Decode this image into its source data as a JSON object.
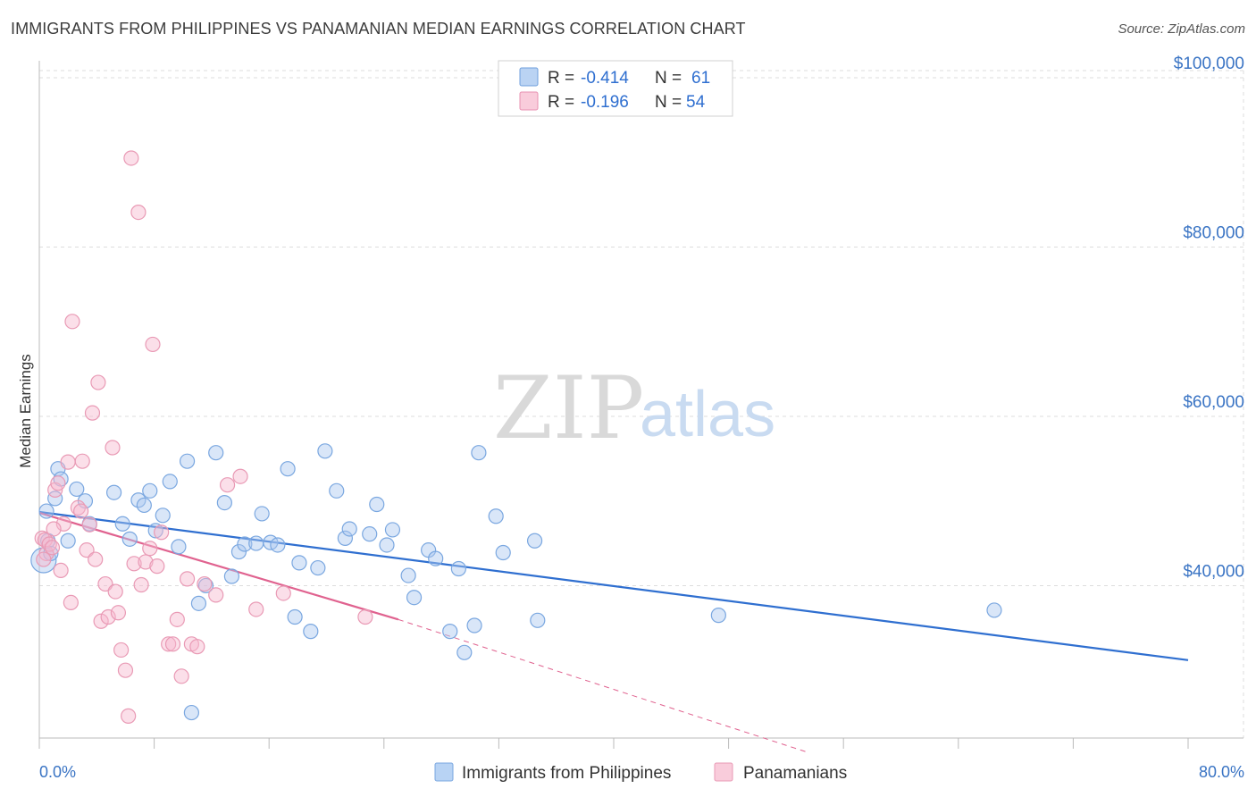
{
  "title": "IMMIGRANTS FROM PHILIPPINES VS PANAMANIAN MEDIAN EARNINGS CORRELATION CHART",
  "source": "Source: ZipAtlas.com",
  "watermark": {
    "zip": "ZIP",
    "atlas": "atlas"
  },
  "legend_top": {
    "rows": [
      {
        "r_label": "R =",
        "r_value": "-0.414",
        "n_label": "N =",
        "n_value": "61",
        "color": "#a9c8f0",
        "stroke": "#6f9fdc"
      },
      {
        "r_label": "R =",
        "r_value": "-0.196",
        "n_label": "N =",
        "n_value": "54",
        "color": "#f7bfd2",
        "stroke": "#e890b0"
      }
    ]
  },
  "legend_bottom": [
    {
      "label": "Immigrants from Philippines",
      "color": "#b8d3f4",
      "stroke": "#7aa7e0"
    },
    {
      "label": "Panamanians",
      "color": "#f9ccdb",
      "stroke": "#e99ab5"
    }
  ],
  "colors": {
    "blue": "#2f6fd0",
    "pink": "#e0628f",
    "blue_fill": "rgba(170,200,240,0.45)",
    "pink_fill": "rgba(247,185,206,0.45)",
    "grid": "#dddddd"
  },
  "chart_data": {
    "type": "scatter",
    "xlabel": "",
    "ylabel": "Median Earnings",
    "xlim": [
      0,
      80
    ],
    "ylim": [
      22000,
      102000
    ],
    "x_tick_labels": [
      "0.0%",
      "80.0%"
    ],
    "y_ticks": [
      40000,
      60000,
      80000,
      100000
    ],
    "y_tick_labels": [
      "$40,000",
      "$60,000",
      "$80,000",
      "$100,000"
    ],
    "grid": true,
    "series": [
      {
        "name": "Immigrants from Philippines",
        "color": "#2f6fd0",
        "points": [
          [
            0.3,
            43000
          ],
          [
            0.5,
            48800
          ],
          [
            0.6,
            45300
          ],
          [
            0.8,
            43800
          ],
          [
            1.1,
            50300
          ],
          [
            1.3,
            53800
          ],
          [
            1.5,
            52600
          ],
          [
            2.0,
            45300
          ],
          [
            2.6,
            51400
          ],
          [
            3.2,
            50000
          ],
          [
            3.5,
            47300
          ],
          [
            5.2,
            51000
          ],
          [
            5.8,
            47300
          ],
          [
            6.3,
            45500
          ],
          [
            6.9,
            50100
          ],
          [
            7.3,
            49500
          ],
          [
            7.7,
            51200
          ],
          [
            8.1,
            46500
          ],
          [
            8.6,
            48300
          ],
          [
            9.1,
            52300
          ],
          [
            9.7,
            44600
          ],
          [
            10.3,
            54700
          ],
          [
            11.1,
            37900
          ],
          [
            11.6,
            40000
          ],
          [
            12.3,
            55700
          ],
          [
            12.9,
            49800
          ],
          [
            13.4,
            41100
          ],
          [
            13.9,
            44000
          ],
          [
            14.3,
            44900
          ],
          [
            15.1,
            45000
          ],
          [
            15.5,
            48500
          ],
          [
            16.1,
            45100
          ],
          [
            16.6,
            44800
          ],
          [
            17.3,
            53800
          ],
          [
            17.8,
            36300
          ],
          [
            18.1,
            42700
          ],
          [
            18.9,
            34600
          ],
          [
            19.4,
            42100
          ],
          [
            19.9,
            55900
          ],
          [
            20.7,
            51200
          ],
          [
            21.3,
            45600
          ],
          [
            21.6,
            46700
          ],
          [
            23.0,
            46100
          ],
          [
            23.5,
            49600
          ],
          [
            24.2,
            44800
          ],
          [
            24.6,
            46600
          ],
          [
            25.7,
            41200
          ],
          [
            26.1,
            38600
          ],
          [
            27.1,
            44200
          ],
          [
            27.6,
            43200
          ],
          [
            28.6,
            34600
          ],
          [
            29.2,
            42000
          ],
          [
            29.6,
            32100
          ],
          [
            30.3,
            35300
          ],
          [
            30.6,
            55700
          ],
          [
            31.8,
            48200
          ],
          [
            32.3,
            43900
          ],
          [
            34.5,
            45300
          ],
          [
            34.7,
            35900
          ],
          [
            47.3,
            36500
          ],
          [
            66.5,
            37100
          ],
          [
            10.6,
            25000
          ]
        ],
        "trend": {
          "x": [
            0,
            80
          ],
          "y": [
            48700,
            31200
          ]
        }
      },
      {
        "name": "Panamanians",
        "color": "#e0628f",
        "points": [
          [
            0.2,
            45600
          ],
          [
            0.4,
            45400
          ],
          [
            0.5,
            43800
          ],
          [
            0.7,
            44900
          ],
          [
            0.9,
            44500
          ],
          [
            1.1,
            51300
          ],
          [
            1.3,
            52100
          ],
          [
            1.5,
            41800
          ],
          [
            1.7,
            47300
          ],
          [
            2.0,
            54600
          ],
          [
            2.2,
            38000
          ],
          [
            2.3,
            71200
          ],
          [
            2.7,
            49200
          ],
          [
            2.9,
            48800
          ],
          [
            3.0,
            54700
          ],
          [
            3.3,
            44200
          ],
          [
            3.5,
            47200
          ],
          [
            3.7,
            60400
          ],
          [
            3.9,
            43100
          ],
          [
            4.1,
            64000
          ],
          [
            4.3,
            35800
          ],
          [
            4.6,
            40200
          ],
          [
            4.8,
            36300
          ],
          [
            5.1,
            56300
          ],
          [
            5.3,
            39300
          ],
          [
            5.5,
            36800
          ],
          [
            5.7,
            32400
          ],
          [
            6.0,
            30000
          ],
          [
            6.2,
            24600
          ],
          [
            6.4,
            90500
          ],
          [
            6.6,
            42600
          ],
          [
            6.9,
            84100
          ],
          [
            7.1,
            40100
          ],
          [
            7.4,
            42800
          ],
          [
            7.7,
            44400
          ],
          [
            7.9,
            68500
          ],
          [
            8.2,
            42300
          ],
          [
            8.5,
            46300
          ],
          [
            9.0,
            33100
          ],
          [
            9.3,
            33100
          ],
          [
            9.6,
            36000
          ],
          [
            9.9,
            29300
          ],
          [
            10.3,
            40800
          ],
          [
            10.6,
            33100
          ],
          [
            11.0,
            32800
          ],
          [
            11.5,
            40200
          ],
          [
            12.3,
            38900
          ],
          [
            13.1,
            51900
          ],
          [
            14.0,
            52900
          ],
          [
            15.1,
            37200
          ],
          [
            17.0,
            39100
          ],
          [
            22.7,
            36300
          ],
          [
            0.3,
            43100
          ],
          [
            1.0,
            46700
          ]
        ],
        "trend": {
          "x": [
            0,
            25
          ],
          "y": [
            48600,
            36000
          ]
        },
        "trend_extension": {
          "x": [
            25,
            56
          ],
          "y": [
            36000,
            20200
          ]
        }
      }
    ]
  }
}
